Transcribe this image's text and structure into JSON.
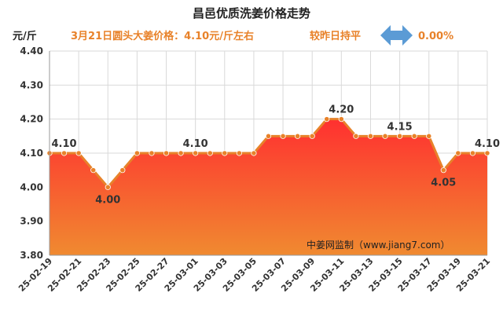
{
  "chart_data": {
    "type": "area",
    "title": "昌邑优质洗姜价格走势",
    "subtitle": "3月21日圆头大姜价格：4.10元/斤左右",
    "change_text": "较昨日持平",
    "change_value": "0.00%",
    "ylabel": "元/斤",
    "xlabel": "",
    "ylim": [
      3.8,
      4.4
    ],
    "yticks": [
      "3.80",
      "3.90",
      "4.00",
      "4.10",
      "4.20",
      "4.30",
      "4.40"
    ],
    "grid": true,
    "source": "中姜网监制（www.jiang7.com）",
    "x": [
      "25-02-19",
      "25-02-20",
      "25-02-21",
      "25-02-22",
      "25-02-23",
      "25-02-24",
      "25-02-25",
      "25-02-26",
      "25-02-27",
      "25-02-28",
      "25-03-01",
      "25-03-02",
      "25-03-03",
      "25-03-04",
      "25-03-05",
      "25-03-06",
      "25-03-07",
      "25-03-08",
      "25-03-09",
      "25-03-10",
      "25-03-11",
      "25-03-12",
      "25-03-13",
      "25-03-14",
      "25-03-15",
      "25-03-16",
      "25-03-17",
      "25-03-18",
      "25-03-19",
      "25-03-20",
      "25-03-21"
    ],
    "xtick_labels": [
      "25-02-19",
      "25-02-21",
      "25-02-23",
      "25-02-25",
      "25-02-27",
      "25-03-01",
      "25-03-03",
      "25-03-05",
      "25-03-07",
      "25-03-09",
      "25-03-11",
      "25-03-13",
      "25-03-15",
      "25-03-17",
      "25-03-19",
      "25-03-21"
    ],
    "values": [
      4.1,
      4.1,
      4.1,
      4.05,
      4.0,
      4.05,
      4.1,
      4.1,
      4.1,
      4.1,
      4.1,
      4.1,
      4.1,
      4.1,
      4.1,
      4.15,
      4.15,
      4.15,
      4.15,
      4.2,
      4.2,
      4.15,
      4.15,
      4.15,
      4.15,
      4.15,
      4.15,
      4.05,
      4.1,
      4.1,
      4.1
    ],
    "data_labels": [
      {
        "index": 1,
        "text": "4.10",
        "pos": "above"
      },
      {
        "index": 4,
        "text": "4.00",
        "pos": "below"
      },
      {
        "index": 10,
        "text": "4.10",
        "pos": "above"
      },
      {
        "index": 20,
        "text": "4.20",
        "pos": "above"
      },
      {
        "index": 24,
        "text": "4.15",
        "pos": "above"
      },
      {
        "index": 27,
        "text": "4.05",
        "pos": "below"
      },
      {
        "index": 30,
        "text": "4.10",
        "pos": "above"
      }
    ],
    "colors": {
      "line": "#e8822a",
      "fill_top": "#ff3030",
      "fill_bottom": "#f08a30",
      "arrow": "#5b9bd5",
      "accent_text": "#e8822a"
    }
  }
}
